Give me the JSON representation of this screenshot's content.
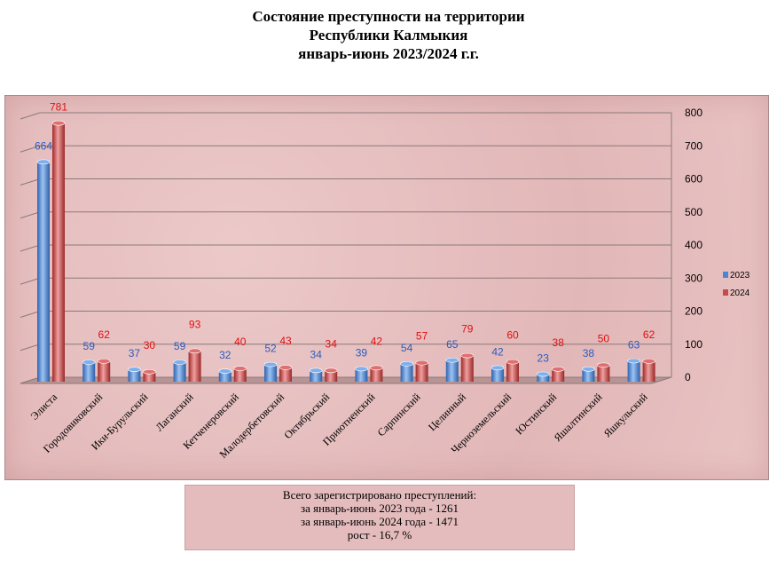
{
  "title": {
    "line1": "Состояние преступности на территории",
    "line2": "Республики Калмыкия",
    "line3": "январь-июнь 2023/2024 г.г."
  },
  "summary": {
    "line1": "Всего зарегистрировано преступлений:",
    "line2": "за январь-июнь 2023 года - 1261",
    "line3": "за январь-июнь 2024 года - 1471",
    "line4": "рост - 16,7 %"
  },
  "chart_data": {
    "type": "bar",
    "title": "Состояние преступности на территории Республики Калмыкия январь-июнь 2023/2024 г.г.",
    "categories": [
      "Элиста",
      "Городовиковский",
      "Ики-Бурульский",
      "Лаганский",
      "Кетченеровский",
      "Малодербетовский",
      "Октябрьский",
      "Приютненский",
      "Сарпинский",
      "Целинный",
      "Черноземельский",
      "Юстинский",
      "Яшалтинский",
      "Яшкульский"
    ],
    "series": [
      {
        "name": "2023",
        "color": "#4a86d4",
        "label_color": "#2a5cc0",
        "values": [
          664,
          59,
          37,
          59,
          32,
          52,
          34,
          39,
          54,
          65,
          42,
          23,
          38,
          63
        ]
      },
      {
        "name": "2024",
        "color": "#c94a4a",
        "label_color": "#e01010",
        "values": [
          781,
          62,
          30,
          93,
          40,
          43,
          34,
          42,
          57,
          79,
          60,
          38,
          50,
          62
        ]
      }
    ],
    "ylim": [
      0,
      800
    ],
    "yticks": [
      0,
      100,
      200,
      300,
      400,
      500,
      600,
      700,
      800
    ],
    "grid": true,
    "legend": "right"
  }
}
